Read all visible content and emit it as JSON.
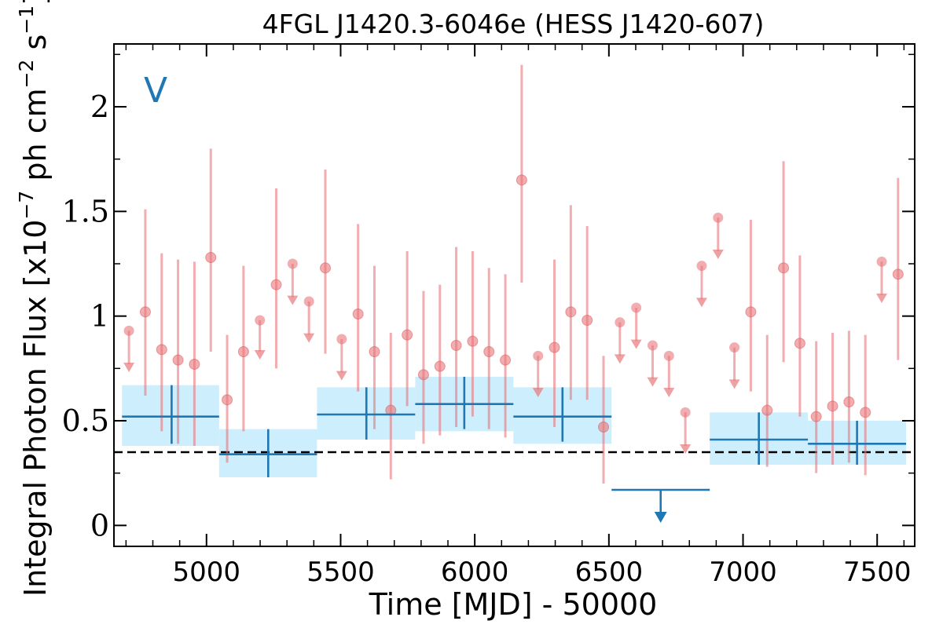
{
  "chart_data": {
    "type": "scatter",
    "title": "4FGL J1420.3-6046e (HESS J1420-607)",
    "xlabel": "Time [MJD] - 50000",
    "ylabel_main": "Integral Photon Flux [x10",
    "ylabel_exp1": "−7",
    "ylabel_mid": " ph cm",
    "ylabel_exp2": "−2",
    "ylabel_mid2": " s",
    "ylabel_exp3": "−1",
    "ylabel_end": "]",
    "panel_label": "V",
    "xlim": [
      4655,
      7640
    ],
    "ylim": [
      -0.1,
      2.3
    ],
    "x_ticks": [
      5000,
      5500,
      6000,
      6500,
      7000,
      7500
    ],
    "x_tick_labels": [
      "5000",
      "5500",
      "6000",
      "6500",
      "7000",
      "7500"
    ],
    "y_ticks": [
      0,
      0.5,
      1,
      1.5,
      2
    ],
    "y_tick_labels": [
      "0",
      "0.5",
      "1",
      "1.5",
      "2"
    ],
    "reference_line": 0.35,
    "colors": {
      "short_bins": "#e8777b",
      "long_bins": "#1f77b4",
      "band_fill": "#cdeefc",
      "reference": "#000000"
    },
    "series": [
      {
        "kind": "short-bin detections",
        "points": [
          {
            "x": 4772,
            "y": 1.02,
            "lo": 0.62,
            "hi": 1.51
          },
          {
            "x": 4833,
            "y": 0.84,
            "lo": 0.45,
            "hi": 1.3
          },
          {
            "x": 4894,
            "y": 0.79,
            "lo": 0.39,
            "hi": 1.27
          },
          {
            "x": 4955,
            "y": 0.77,
            "lo": 0.38,
            "hi": 1.26
          },
          {
            "x": 5016,
            "y": 1.28,
            "lo": 0.83,
            "hi": 1.8
          },
          {
            "x": 5077,
            "y": 0.6,
            "lo": 0.3,
            "hi": 0.91
          },
          {
            "x": 5138,
            "y": 0.83,
            "lo": 0.45,
            "hi": 1.24
          },
          {
            "x": 5260,
            "y": 1.15,
            "lo": 0.75,
            "hi": 1.61
          },
          {
            "x": 5443,
            "y": 1.23,
            "lo": 0.82,
            "hi": 1.7
          },
          {
            "x": 5565,
            "y": 1.01,
            "lo": 0.64,
            "hi": 1.44
          },
          {
            "x": 5626,
            "y": 0.83,
            "lo": 0.46,
            "hi": 1.24
          },
          {
            "x": 5687,
            "y": 0.55,
            "lo": 0.22,
            "hi": 0.92
          },
          {
            "x": 5748,
            "y": 0.91,
            "lo": 0.57,
            "hi": 1.31
          },
          {
            "x": 5809,
            "y": 0.72,
            "lo": 0.39,
            "hi": 1.12
          },
          {
            "x": 5870,
            "y": 0.76,
            "lo": 0.43,
            "hi": 1.15
          },
          {
            "x": 5931,
            "y": 0.86,
            "lo": 0.47,
            "hi": 1.33
          },
          {
            "x": 5992,
            "y": 0.88,
            "lo": 0.52,
            "hi": 1.31
          },
          {
            "x": 6053,
            "y": 0.83,
            "lo": 0.46,
            "hi": 1.23
          },
          {
            "x": 6114,
            "y": 0.79,
            "lo": 0.42,
            "hi": 1.2
          },
          {
            "x": 6175,
            "y": 1.65,
            "lo": 1.16,
            "hi": 2.2
          },
          {
            "x": 6297,
            "y": 0.85,
            "lo": 0.47,
            "hi": 1.27
          },
          {
            "x": 6358,
            "y": 1.02,
            "lo": 0.6,
            "hi": 1.53
          },
          {
            "x": 6419,
            "y": 0.98,
            "lo": 0.6,
            "hi": 1.43
          },
          {
            "x": 6480,
            "y": 0.47,
            "lo": 0.2,
            "hi": 0.81
          },
          {
            "x": 7029,
            "y": 1.02,
            "lo": 0.64,
            "hi": 1.46
          },
          {
            "x": 7090,
            "y": 0.55,
            "lo": 0.28,
            "hi": 0.91
          },
          {
            "x": 7151,
            "y": 1.23,
            "lo": 0.78,
            "hi": 1.74
          },
          {
            "x": 7212,
            "y": 0.87,
            "lo": 0.52,
            "hi": 1.29
          },
          {
            "x": 7273,
            "y": 0.52,
            "lo": 0.25,
            "hi": 0.88
          },
          {
            "x": 7334,
            "y": 0.57,
            "lo": 0.29,
            "hi": 0.92
          },
          {
            "x": 7395,
            "y": 0.59,
            "lo": 0.3,
            "hi": 0.93
          },
          {
            "x": 7456,
            "y": 0.54,
            "lo": 0.24,
            "hi": 0.91
          },
          {
            "x": 7578,
            "y": 1.2,
            "lo": 0.79,
            "hi": 1.66
          }
        ]
      },
      {
        "kind": "short-bin upper limits",
        "points": [
          {
            "x": 4711,
            "y": 0.93,
            "tip": 0.74
          },
          {
            "x": 5199,
            "y": 0.98,
            "tip": 0.8
          },
          {
            "x": 5321,
            "y": 1.25,
            "tip": 1.06
          },
          {
            "x": 5382,
            "y": 1.07,
            "tip": 0.88
          },
          {
            "x": 5504,
            "y": 0.89,
            "tip": 0.7
          },
          {
            "x": 6236,
            "y": 0.81,
            "tip": 0.62
          },
          {
            "x": 6541,
            "y": 0.97,
            "tip": 0.78
          },
          {
            "x": 6602,
            "y": 1.04,
            "tip": 0.85
          },
          {
            "x": 6663,
            "y": 0.86,
            "tip": 0.67
          },
          {
            "x": 6724,
            "y": 0.81,
            "tip": 0.62
          },
          {
            "x": 6785,
            "y": 0.54,
            "tip": 0.35
          },
          {
            "x": 6846,
            "y": 1.24,
            "tip": 1.05
          },
          {
            "x": 6907,
            "y": 1.47,
            "tip": 1.28
          },
          {
            "x": 6968,
            "y": 0.85,
            "tip": 0.66
          },
          {
            "x": 7517,
            "y": 1.26,
            "tip": 1.07
          }
        ]
      },
      {
        "kind": "long-bin detections",
        "points": [
          {
            "x0": 4685,
            "x1": 5047,
            "xc": 4870,
            "y": 0.52,
            "lo": 0.39,
            "hi": 0.67,
            "band_lo": 0.38,
            "band_hi": 0.67
          },
          {
            "x0": 5047,
            "x1": 5412,
            "xc": 5230,
            "y": 0.34,
            "lo": 0.23,
            "hi": 0.46,
            "band_lo": 0.23,
            "band_hi": 0.46
          },
          {
            "x0": 5412,
            "x1": 5778,
            "xc": 5596,
            "y": 0.53,
            "lo": 0.41,
            "hi": 0.66,
            "band_lo": 0.41,
            "band_hi": 0.66
          },
          {
            "x0": 5778,
            "x1": 6144,
            "xc": 5961,
            "y": 0.58,
            "lo": 0.46,
            "hi": 0.71,
            "band_lo": 0.45,
            "band_hi": 0.71
          },
          {
            "x0": 6144,
            "x1": 6510,
            "xc": 6327,
            "y": 0.52,
            "lo": 0.4,
            "hi": 0.66,
            "band_lo": 0.39,
            "band_hi": 0.66
          },
          {
            "x0": 6876,
            "x1": 7242,
            "xc": 7059,
            "y": 0.41,
            "lo": 0.29,
            "hi": 0.54,
            "band_lo": 0.29,
            "band_hi": 0.54
          },
          {
            "x0": 7242,
            "x1": 7608,
            "xc": 7425,
            "y": 0.39,
            "lo": 0.29,
            "hi": 0.5,
            "band_lo": 0.29,
            "band_hi": 0.5
          }
        ]
      },
      {
        "kind": "long-bin upper limits",
        "points": [
          {
            "x0": 6510,
            "x1": 6876,
            "xc": 6693,
            "y": 0.17,
            "tip": 0.02
          }
        ]
      }
    ]
  }
}
